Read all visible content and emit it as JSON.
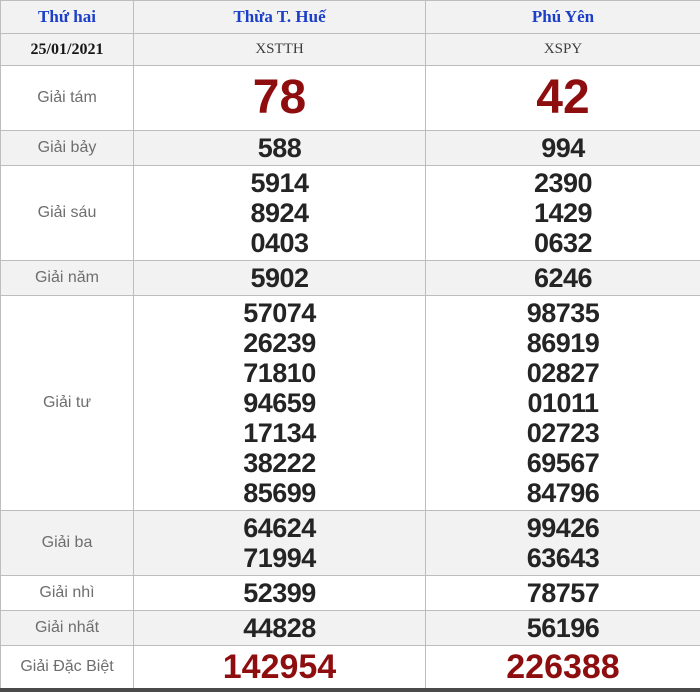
{
  "header": {
    "day": "Thứ hai",
    "province1": "Thừa T. Huế",
    "province2": "Phú Yên"
  },
  "subheader": {
    "date": "25/01/2021",
    "code1": "XSTTH",
    "code2": "XSPY"
  },
  "rows": [
    {
      "label": "Giải tám",
      "style": "big-red",
      "tth": [
        "78"
      ],
      "py": [
        "42"
      ]
    },
    {
      "label": "Giải bảy",
      "style": "",
      "tth": [
        "588"
      ],
      "py": [
        "994"
      ]
    },
    {
      "label": "Giải sáu",
      "style": "",
      "tth": [
        "5914",
        "8924",
        "0403"
      ],
      "py": [
        "2390",
        "1429",
        "0632"
      ]
    },
    {
      "label": "Giải năm",
      "style": "",
      "tth": [
        "5902"
      ],
      "py": [
        "6246"
      ]
    },
    {
      "label": "Giải tư",
      "style": "",
      "tth": [
        "57074",
        "26239",
        "71810",
        "94659",
        "17134",
        "38222",
        "85699"
      ],
      "py": [
        "98735",
        "86919",
        "02827",
        "01011",
        "02723",
        "69567",
        "84796"
      ]
    },
    {
      "label": "Giải ba",
      "style": "",
      "tth": [
        "64624",
        "71994"
      ],
      "py": [
        "99426",
        "63643"
      ]
    },
    {
      "label": "Giải nhì",
      "style": "",
      "tth": [
        "52399"
      ],
      "py": [
        "78757"
      ]
    },
    {
      "label": "Giải nhất",
      "style": "",
      "tth": [
        "44828"
      ],
      "py": [
        "56196"
      ]
    },
    {
      "label": "Giải Đặc Biệt",
      "style": "special",
      "tth": [
        "142954"
      ],
      "py": [
        "226388"
      ]
    }
  ],
  "colors": {
    "header_blue": "#1b3fc8",
    "result_red": "#8e0e10",
    "row_shade": "#f2f2f2",
    "border_gray": "#bdbdbd",
    "label_gray": "#6e6e6e",
    "number_black": "#242424",
    "bottom_border_dark": "#4a4a4a"
  }
}
